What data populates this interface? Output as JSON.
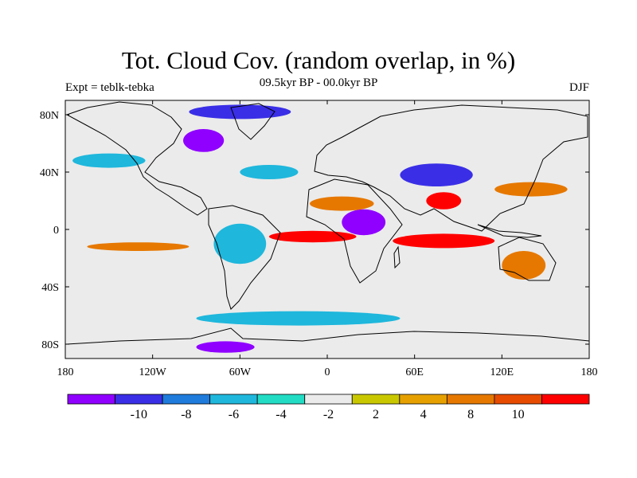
{
  "title": "Tot. Cloud Cov. (random overlap, in %)",
  "subtitle": "09.5kyr BP - 00.0kyr BP",
  "left_label": "Expt = teblk-tebka",
  "right_label": "DJF",
  "map": {
    "lon_range": [
      -180,
      180
    ],
    "lat_range": [
      -90,
      90
    ],
    "x_ticks": [
      {
        "lon": -180,
        "label": "180"
      },
      {
        "lon": -120,
        "label": "120W"
      },
      {
        "lon": -60,
        "label": "60W"
      },
      {
        "lon": 0,
        "label": "0"
      },
      {
        "lon": 60,
        "label": "60E"
      },
      {
        "lon": 120,
        "label": "120E"
      },
      {
        "lon": 180,
        "label": "180"
      }
    ],
    "y_ticks": [
      {
        "lat": 80,
        "label": "80N"
      },
      {
        "lat": 40,
        "label": "40N"
      },
      {
        "lat": 0,
        "label": "0"
      },
      {
        "lat": -40,
        "label": "40S"
      },
      {
        "lat": -80,
        "label": "80S"
      }
    ],
    "anomalies": [
      {
        "name": "amazon-decrease",
        "lon": -60,
        "lat": -10,
        "rx": 18,
        "ry": 14,
        "level": -4
      },
      {
        "name": "central-africa-decrease",
        "lon": 25,
        "lat": 5,
        "rx": 15,
        "ry": 9,
        "level": -10
      },
      {
        "name": "central-asia-decrease",
        "lon": 75,
        "lat": 38,
        "rx": 25,
        "ry": 8,
        "level": -8
      },
      {
        "name": "hudson-bay-decrease",
        "lon": -85,
        "lat": 62,
        "rx": 14,
        "ry": 8,
        "level": -10
      },
      {
        "name": "arctic-decrease",
        "lon": -60,
        "lat": 82,
        "rx": 35,
        "ry": 5,
        "level": -8
      },
      {
        "name": "antarctic-decrease",
        "lon": -70,
        "lat": -82,
        "rx": 20,
        "ry": 4,
        "level": -10
      },
      {
        "name": "north-africa-increase",
        "lon": 10,
        "lat": 18,
        "rx": 22,
        "ry": 5,
        "level": 8
      },
      {
        "name": "itcz-atlantic-increase",
        "lon": -10,
        "lat": -5,
        "rx": 30,
        "ry": 4,
        "level": 10
      },
      {
        "name": "indian-ocean-increase",
        "lon": 80,
        "lat": -8,
        "rx": 35,
        "ry": 5,
        "level": 10
      },
      {
        "name": "east-pacific-increase",
        "lon": -130,
        "lat": -12,
        "rx": 35,
        "ry": 3,
        "level": 8
      },
      {
        "name": "india-increase",
        "lon": 80,
        "lat": 20,
        "rx": 12,
        "ry": 6,
        "level": 10
      },
      {
        "name": "north-pacific-increase",
        "lon": 140,
        "lat": 28,
        "rx": 25,
        "ry": 5,
        "level": 8
      },
      {
        "name": "australia-increase",
        "lon": 135,
        "lat": -25,
        "rx": 15,
        "ry": 10,
        "level": 8
      },
      {
        "name": "southern-ocean-decrease",
        "lon": -20,
        "lat": -62,
        "rx": 70,
        "ry": 5,
        "level": -4
      },
      {
        "name": "north-pacific-decrease",
        "lon": -150,
        "lat": 48,
        "rx": 25,
        "ry": 5,
        "level": -4
      },
      {
        "name": "atlantic-decrease",
        "lon": -40,
        "lat": 40,
        "rx": 20,
        "ry": 5,
        "level": -4
      }
    ]
  },
  "colorbar": {
    "colors": [
      "#8f00ff",
      "#3a2fe6",
      "#1f7bdc",
      "#1fb7dc",
      "#22dcc4",
      "#ebebeb",
      "#c9c800",
      "#e6a100",
      "#e67800",
      "#e64b00",
      "#ff0000"
    ],
    "labels": [
      "-10",
      "-8",
      "-6",
      "-4",
      "-2",
      "2",
      "4",
      "8",
      "10"
    ]
  }
}
